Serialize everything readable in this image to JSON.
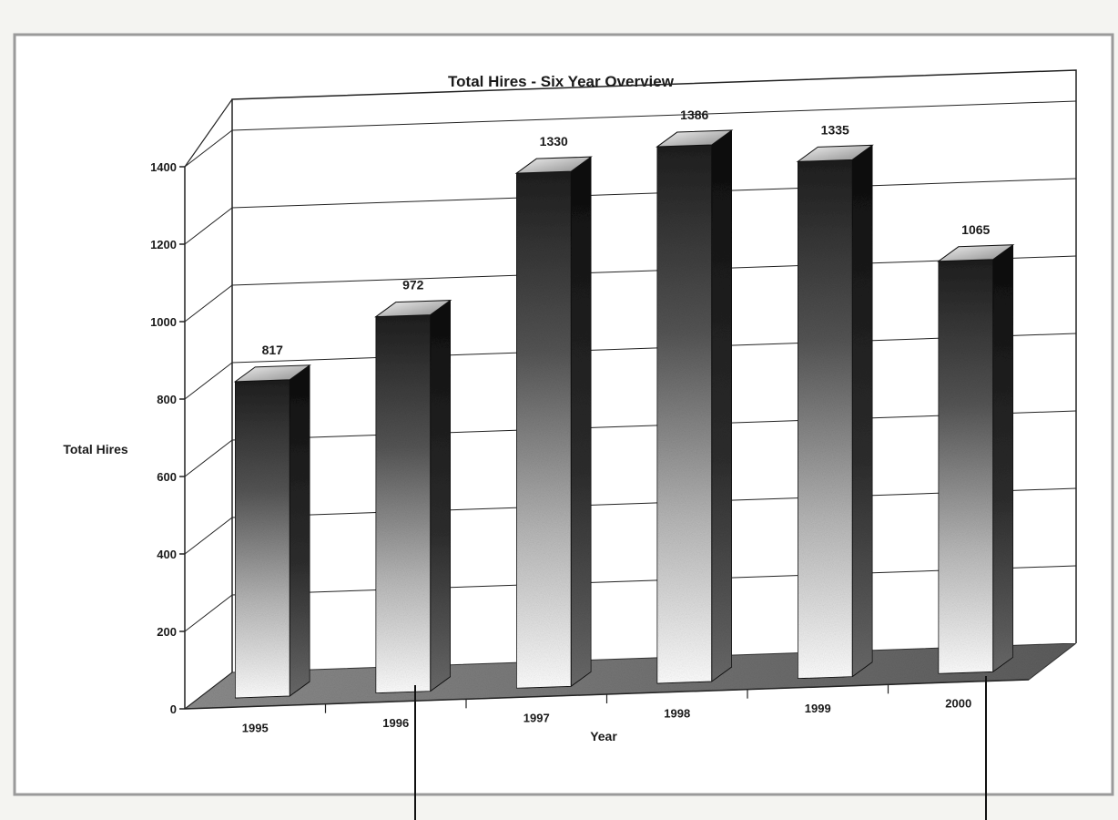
{
  "chart_data": {
    "type": "bar",
    "style": "3d",
    "title": "Total Hires - Six Year Overview",
    "xlabel": "Year",
    "ylabel": "Total Hires",
    "categories": [
      "1995",
      "1996",
      "1997",
      "1998",
      "1999",
      "2000"
    ],
    "values": [
      817,
      972,
      1330,
      1386,
      1335,
      1065
    ],
    "ylim": [
      0,
      1400
    ],
    "yticks": [
      0,
      200,
      400,
      600,
      800,
      1000,
      1200,
      1400
    ],
    "grid": true,
    "legend": "none"
  },
  "colors": {
    "bar_dark": "#1f1f1f",
    "bar_light": "#ffffff",
    "floor": "#7a7a7a",
    "frame": "#2b2b2b"
  }
}
